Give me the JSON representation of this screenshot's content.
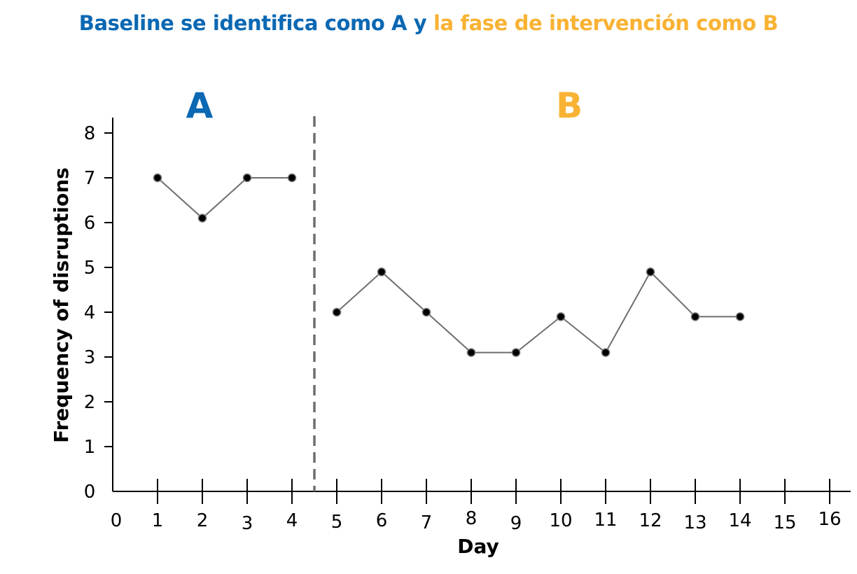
{
  "title": {
    "part_a": "Baseline se identifica como  A y",
    "part_b": "la fase de intervención como B"
  },
  "colors": {
    "baseline": "#0B68B3",
    "intervention": "#F9B233",
    "line": "#6e6e6e",
    "point": "#000000",
    "divider": "#6e6e6e"
  },
  "chart_data": {
    "type": "line",
    "xlabel": "Day",
    "ylabel": "Frequency of disruptions",
    "xlim": [
      0,
      16
    ],
    "ylim": [
      0,
      8
    ],
    "x_ticks": [
      0,
      1,
      2,
      3,
      4,
      5,
      6,
      7,
      8,
      9,
      10,
      11,
      12,
      13,
      14,
      15,
      16
    ],
    "y_ticks": [
      0,
      1,
      2,
      3,
      4,
      5,
      6,
      7,
      8
    ],
    "phase_change_x": 4.5,
    "phases": [
      {
        "label": "A",
        "x": [
          1,
          2,
          3,
          4
        ],
        "y": [
          7,
          6.1,
          7,
          7
        ]
      },
      {
        "label": "B",
        "x": [
          5,
          6,
          7,
          8,
          9,
          10,
          11,
          12,
          13,
          14
        ],
        "y": [
          4,
          4.9,
          4,
          3.1,
          3.1,
          3.9,
          3.1,
          4.9,
          3.9,
          3.9
        ]
      }
    ],
    "grid": false,
    "legend": "none"
  }
}
